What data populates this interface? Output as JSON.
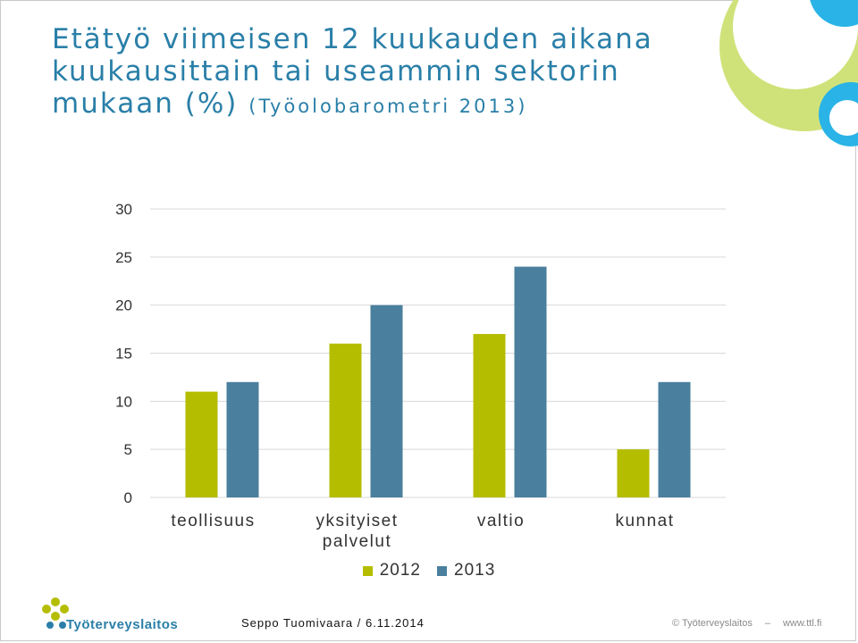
{
  "slide": {
    "title": "Etätyö viimeisen 12 kuukauden aikana kuukausittain tai useammin sektorin mukaan (%)",
    "title_source": "(Työolobarometri 2013)"
  },
  "footer": {
    "presenter": "Seppo Tuomivaara / 6.11.2014",
    "copyright": "© Työterveyslaitos",
    "website": "www.ttl.fi"
  },
  "logo": {
    "name": "Työterveyslaitos"
  },
  "colors": {
    "series_2012": "#b5bd00",
    "series_2013": "#4a7f9e",
    "title": "#2a7fa8",
    "deco_green": "#cfe27a",
    "deco_blue": "#2ab3e6"
  },
  "chart_data": {
    "type": "bar",
    "categories": [
      "teollisuus",
      "yksityiset palvelut",
      "valtio",
      "kunnat"
    ],
    "category_lines": [
      [
        "teollisuus"
      ],
      [
        "yksityiset",
        "palvelut"
      ],
      [
        "valtio"
      ],
      [
        "kunnat"
      ]
    ],
    "series": [
      {
        "name": "2012",
        "values": [
          11,
          16,
          17,
          5
        ]
      },
      {
        "name": "2013",
        "values": [
          12,
          20,
          24,
          12
        ]
      }
    ],
    "ylim": [
      0,
      30
    ],
    "yticks": [
      0,
      5,
      10,
      15,
      20,
      25,
      30
    ],
    "grid": true,
    "legend": "bottom"
  }
}
